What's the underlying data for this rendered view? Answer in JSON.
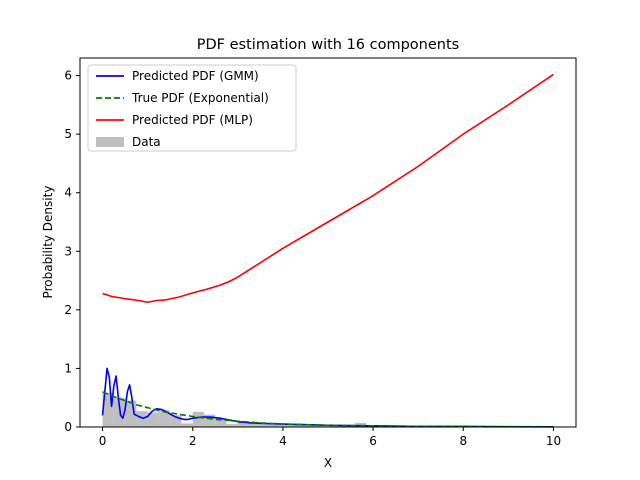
{
  "chart_data": {
    "type": "line",
    "title": "PDF estimation with 16 components",
    "xlabel": "X",
    "ylabel": "Probability Density",
    "xlim": [
      -0.5,
      10.5
    ],
    "ylim": [
      0,
      6.3
    ],
    "xticks": [
      0,
      2,
      4,
      6,
      8,
      10
    ],
    "yticks": [
      0,
      1,
      2,
      3,
      4,
      5,
      6
    ],
    "grid": false,
    "legend_position": "upper-left",
    "histogram": {
      "name": "Data",
      "color": "#bfbfbf",
      "bins": [
        {
          "x0": 0.0,
          "x1": 0.25,
          "h": 0.58
        },
        {
          "x0": 0.25,
          "x1": 0.5,
          "h": 0.5
        },
        {
          "x0": 0.5,
          "x1": 0.75,
          "h": 0.45
        },
        {
          "x0": 0.75,
          "x1": 1.0,
          "h": 0.27
        },
        {
          "x0": 1.0,
          "x1": 1.25,
          "h": 0.25
        },
        {
          "x0": 1.25,
          "x1": 1.5,
          "h": 0.28
        },
        {
          "x0": 1.5,
          "x1": 1.75,
          "h": 0.2
        },
        {
          "x0": 1.75,
          "x1": 2.0,
          "h": 0.06
        },
        {
          "x0": 2.0,
          "x1": 2.25,
          "h": 0.26
        },
        {
          "x0": 2.25,
          "x1": 2.5,
          "h": 0.21
        },
        {
          "x0": 2.5,
          "x1": 2.75,
          "h": 0.12
        },
        {
          "x0": 2.75,
          "x1": 3.0,
          "h": 0.05
        },
        {
          "x0": 3.0,
          "x1": 3.5,
          "h": 0.08
        },
        {
          "x0": 3.5,
          "x1": 4.0,
          "h": 0.05
        },
        {
          "x0": 4.0,
          "x1": 4.5,
          "h": 0.04
        },
        {
          "x0": 4.5,
          "x1": 5.0,
          "h": 0.03
        },
        {
          "x0": 5.0,
          "x1": 5.5,
          "h": 0.02
        },
        {
          "x0": 5.6,
          "x1": 5.85,
          "h": 0.07
        },
        {
          "x0": 5.85,
          "x1": 6.5,
          "h": 0.02
        },
        {
          "x0": 6.5,
          "x1": 7.5,
          "h": 0.01
        }
      ]
    },
    "series": [
      {
        "name": "Predicted PDF (GMM)",
        "color": "#0000ff",
        "style": "solid",
        "x": [
          0.0,
          0.05,
          0.1,
          0.15,
          0.2,
          0.25,
          0.3,
          0.35,
          0.4,
          0.45,
          0.5,
          0.55,
          0.6,
          0.65,
          0.7,
          0.75,
          0.8,
          0.9,
          1.0,
          1.1,
          1.2,
          1.3,
          1.4,
          1.5,
          1.6,
          1.7,
          1.8,
          1.9,
          2.0,
          2.2,
          2.4,
          2.6,
          2.8,
          3.0,
          3.3,
          3.6,
          4.0,
          4.5,
          5.0,
          6.0,
          7.0,
          8.0,
          9.0,
          10.0
        ],
        "y": [
          0.2,
          0.6,
          1.0,
          0.85,
          0.35,
          0.7,
          0.87,
          0.5,
          0.2,
          0.15,
          0.3,
          0.6,
          0.72,
          0.5,
          0.22,
          0.2,
          0.18,
          0.15,
          0.18,
          0.27,
          0.31,
          0.3,
          0.27,
          0.22,
          0.18,
          0.15,
          0.13,
          0.13,
          0.15,
          0.17,
          0.17,
          0.15,
          0.12,
          0.09,
          0.07,
          0.06,
          0.05,
          0.04,
          0.03,
          0.02,
          0.01,
          0.01,
          0.005,
          0.003
        ]
      },
      {
        "name": "True PDF (Exponential)",
        "color": "#008000",
        "style": "dashed",
        "x": [
          0.0,
          0.25,
          0.5,
          0.75,
          1.0,
          1.25,
          1.5,
          1.75,
          2.0,
          2.5,
          3.0,
          3.5,
          4.0,
          4.5,
          5.0,
          6.0,
          7.0,
          8.0,
          9.0,
          10.0
        ],
        "y": [
          0.6,
          0.52,
          0.45,
          0.38,
          0.33,
          0.28,
          0.24,
          0.21,
          0.18,
          0.13,
          0.1,
          0.07,
          0.05,
          0.04,
          0.03,
          0.02,
          0.01,
          0.005,
          0.003,
          0.002
        ]
      },
      {
        "name": "Predicted PDF (MLP)",
        "color": "#ff0000",
        "style": "solid",
        "x": [
          0.0,
          0.2,
          0.5,
          0.8,
          1.0,
          1.2,
          1.4,
          1.7,
          2.0,
          2.3,
          2.6,
          2.8,
          3.0,
          4.0,
          5.0,
          6.0,
          7.0,
          8.0,
          9.0,
          10.0
        ],
        "y": [
          2.28,
          2.23,
          2.19,
          2.16,
          2.13,
          2.16,
          2.17,
          2.22,
          2.29,
          2.35,
          2.42,
          2.48,
          2.56,
          3.05,
          3.5,
          3.95,
          4.45,
          5.0,
          5.5,
          6.02
        ]
      }
    ],
    "legend_order": [
      "Predicted PDF (GMM)",
      "True PDF (Exponential)",
      "Predicted PDF (MLP)",
      "Data"
    ]
  }
}
